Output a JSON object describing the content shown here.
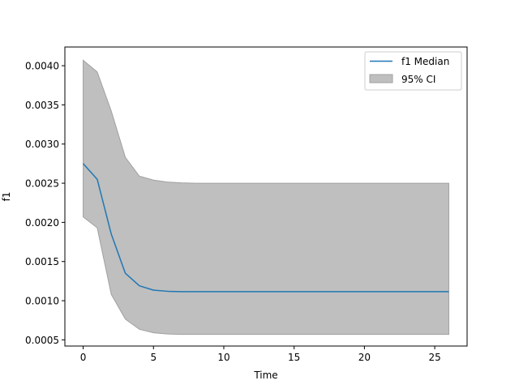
{
  "chart_data": {
    "type": "line",
    "title": "",
    "xlabel": "Time",
    "ylabel": "f1",
    "xlim": [
      -1.3,
      27.3
    ],
    "ylim": [
      0.000421,
      0.004239
    ],
    "xticks": [
      0,
      5,
      10,
      15,
      20,
      25
    ],
    "xtick_labels": [
      "0",
      "5",
      "10",
      "15",
      "20",
      "25"
    ],
    "yticks": [
      0.0005,
      0.001,
      0.0015,
      0.002,
      0.0025,
      0.003,
      0.0035,
      0.004
    ],
    "ytick_labels": [
      "0.0005",
      "0.0010",
      "0.0015",
      "0.0020",
      "0.0025",
      "0.0030",
      "0.0035",
      "0.0040"
    ],
    "grid": false,
    "legend_position": "top-right",
    "x": [
      0,
      1,
      2,
      3,
      4,
      5,
      6,
      7,
      8,
      9,
      10,
      11,
      12,
      13,
      14,
      15,
      16,
      17,
      18,
      19,
      20,
      21,
      22,
      23,
      24,
      25,
      26
    ],
    "series": [
      {
        "name": "f1 Median",
        "color": "#1f77b4",
        "values": [
          0.00275,
          0.00255,
          0.00185,
          0.00135,
          0.00119,
          0.001135,
          0.00112,
          0.001115,
          0.001115,
          0.001115,
          0.001115,
          0.001115,
          0.001115,
          0.001115,
          0.001115,
          0.001115,
          0.001115,
          0.001115,
          0.001115,
          0.001115,
          0.001115,
          0.001115,
          0.001115,
          0.001115,
          0.001115,
          0.001115,
          0.001115
        ]
      }
    ],
    "band": {
      "name": "95% CI",
      "color": "#bfbfbf",
      "edge_color": "#a0a0a0",
      "upper": [
        0.00407,
        0.00392,
        0.00342,
        0.00283,
        0.00259,
        0.00254,
        0.002515,
        0.002505,
        0.0025,
        0.0025,
        0.0025,
        0.0025,
        0.0025,
        0.0025,
        0.0025,
        0.0025,
        0.0025,
        0.0025,
        0.0025,
        0.0025,
        0.0025,
        0.0025,
        0.0025,
        0.0025,
        0.0025,
        0.0025,
        0.0025
      ],
      "lower": [
        0.00207,
        0.00193,
        0.00108,
        0.000765,
        0.000635,
        0.00059,
        0.000575,
        0.00057,
        0.00057,
        0.00057,
        0.00057,
        0.00057,
        0.00057,
        0.00057,
        0.00057,
        0.00057,
        0.00057,
        0.00057,
        0.00057,
        0.00057,
        0.00057,
        0.00057,
        0.00057,
        0.00057,
        0.00057,
        0.00057,
        0.00057
      ]
    }
  }
}
